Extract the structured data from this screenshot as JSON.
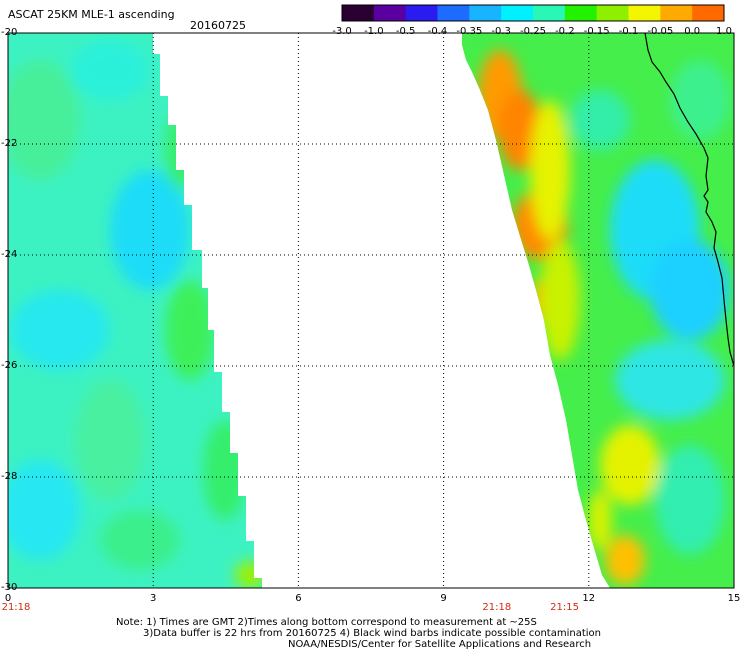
{
  "header": {
    "title": "ASCAT 25KM MLE-1 ascending",
    "date": "20160725"
  },
  "colorbar": {
    "labels": [
      "-3.0",
      "-1.0",
      "-0.5",
      "-0.4",
      "-0.35",
      "-0.3",
      "-0.25",
      "-0.2",
      "-0.15",
      "-0.1",
      "-0.05",
      "0.0",
      "1.0"
    ],
    "colors": [
      "#2a0033",
      "#5a00a0",
      "#2a1cf0",
      "#1e6cff",
      "#19b4ff",
      "#00f0ff",
      "#28f7b5",
      "#22f200",
      "#8ef000",
      "#f3f600",
      "#ffaa00",
      "#ff6a00",
      "#ff1a00"
    ]
  },
  "map": {
    "x_axis": {
      "ticks": [
        "0",
        "3",
        "6",
        "9",
        "12",
        "15"
      ],
      "min": 0,
      "max": 15
    },
    "y_axis": {
      "ticks": [
        "-20",
        "-22",
        "-24",
        "-26",
        "-28",
        "-30"
      ],
      "min": -30,
      "max": -20
    },
    "time_labels": [
      {
        "text": "21:18",
        "x": 0
      },
      {
        "text": "21:18",
        "x": 10.1
      },
      {
        "text": "21:15",
        "x": 11.5
      }
    ],
    "grid": "dotted",
    "swaths": [
      {
        "name": "left swath",
        "dominant_range": "-0.3 to -0.2"
      },
      {
        "name": "right swath",
        "dominant_range": "-0.3 to -0.05"
      }
    ]
  },
  "footer": {
    "note_line1": "Note: 1) Times are GMT 2)Times along bottom correspond to measurement at ~25S",
    "note_line2": "3)Data buffer is 22 hrs from 20160725 4) Black wind barbs indicate possible contamination",
    "note_line3": "NOAA/NESDIS/Center for Satellite Applications and Research"
  }
}
